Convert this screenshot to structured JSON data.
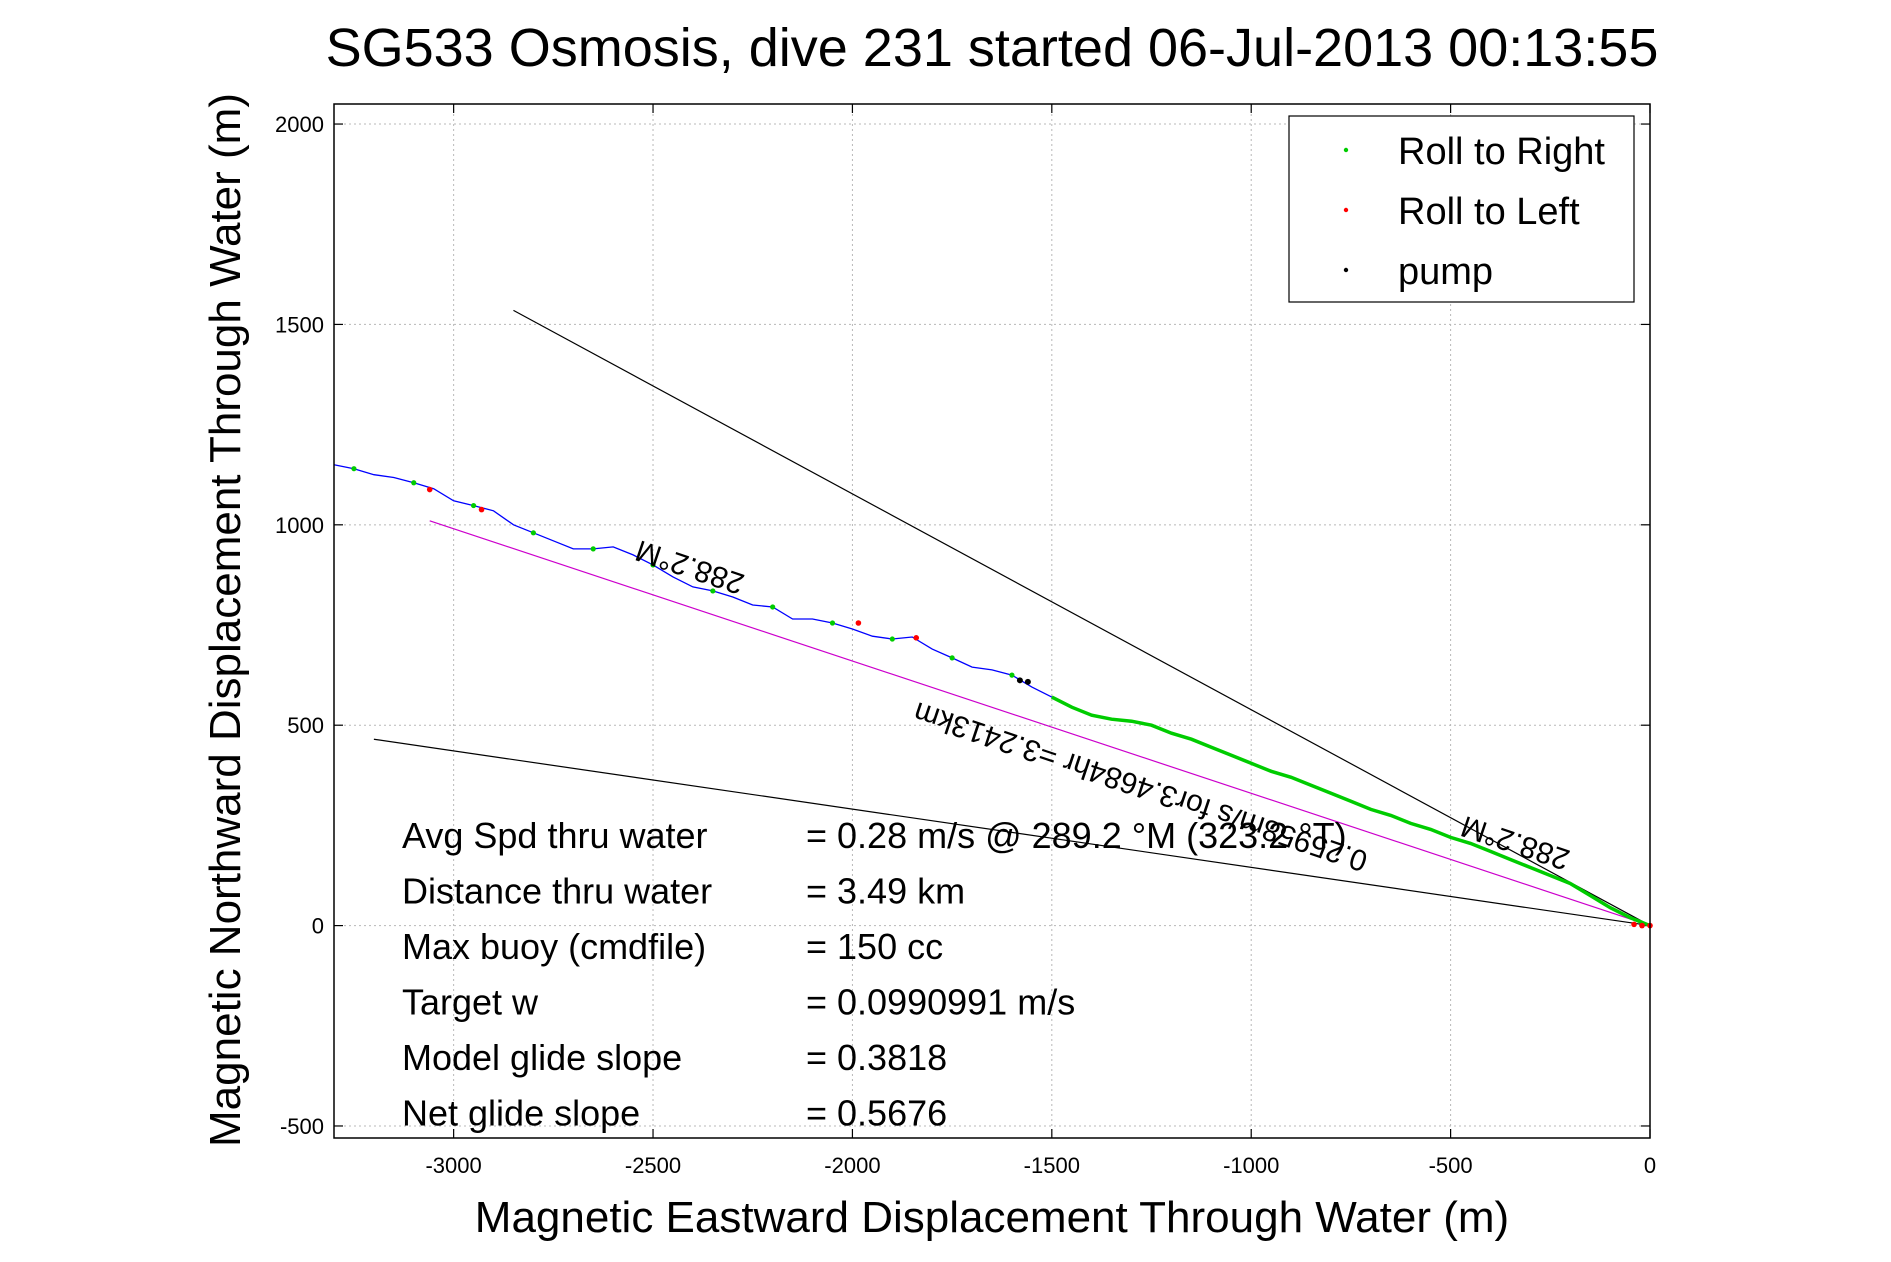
{
  "chart_data": {
    "type": "line",
    "title": "SG533 Osmosis, dive 231 started 06-Jul-2013 00:13:55",
    "xlabel": "Magnetic Eastward Displacement Through Water (m)",
    "ylabel": "Magnetic Northward Displacement Through Water (m)",
    "xlim": [
      -3300,
      0
    ],
    "ylim": [
      -530,
      2050
    ],
    "xticks": [
      -3000,
      -2500,
      -2000,
      -1500,
      -1000,
      -500,
      0
    ],
    "yticks": [
      -500,
      0,
      500,
      1000,
      1500,
      2000
    ],
    "grid": true,
    "legend_position": "top-right",
    "legend": [
      {
        "name": "Roll to Right",
        "color": "#00cc00"
      },
      {
        "name": "Roll to Left",
        "color": "#ff0000"
      },
      {
        "name": "pump",
        "color": "#000000"
      }
    ],
    "track": {
      "color": "#0000ff",
      "x": [
        -3300,
        -3250,
        -3200,
        -3150,
        -3100,
        -3050,
        -3000,
        -2950,
        -2900,
        -2850,
        -2800,
        -2750,
        -2700,
        -2650,
        -2600,
        -2550,
        -2500,
        -2450,
        -2400,
        -2350,
        -2300,
        -2250,
        -2200,
        -2150,
        -2100,
        -2050,
        -2000,
        -1950,
        -1900,
        -1850,
        -1800,
        -1750,
        -1700,
        -1650,
        -1600,
        -1550,
        -1500,
        -1450,
        -1400,
        -1350,
        -1300,
        -1250,
        -1200,
        -1150,
        -1100,
        -1050,
        -1000,
        -950,
        -900,
        -850,
        -800,
        -750,
        -700,
        -650,
        -600,
        -550,
        -500,
        -450,
        -400,
        -350,
        -300,
        -250,
        -200,
        -150,
        -100,
        -50,
        0
      ],
      "y": [
        1150,
        1140,
        1125,
        1118,
        1105,
        1090,
        1060,
        1048,
        1035,
        1000,
        980,
        960,
        940,
        940,
        945,
        925,
        900,
        870,
        845,
        835,
        820,
        800,
        795,
        765,
        765,
        755,
        740,
        722,
        715,
        720,
        690,
        668,
        645,
        638,
        625,
        595,
        570,
        545,
        525,
        515,
        510,
        500,
        480,
        465,
        445,
        425,
        405,
        385,
        370,
        350,
        330,
        310,
        290,
        275,
        255,
        240,
        220,
        205,
        185,
        165,
        145,
        125,
        105,
        75,
        45,
        20,
        0
      ]
    },
    "roll_right_segment": {
      "x_from": -1530,
      "x_to": 0
    },
    "roll_left_points": {
      "x": [
        -3060,
        -2930,
        -1985,
        -1840,
        -40,
        -20,
        0
      ],
      "y": [
        1088,
        1038,
        755,
        718,
        3,
        0,
        0
      ]
    },
    "pump_points": {
      "x": [
        -1580,
        -1560
      ],
      "y": [
        612,
        608
      ]
    },
    "lines": [
      {
        "name": "heading",
        "color": "#cc00cc",
        "x": [
          -3060,
          0
        ],
        "y": [
          1010,
          0
        ]
      },
      {
        "name": "bound-upper",
        "color": "#000000",
        "x": [
          -2850,
          0
        ],
        "y": [
          1535,
          0
        ]
      },
      {
        "name": "bound-lower",
        "color": "#000000",
        "x": [
          -3200,
          0
        ],
        "y": [
          465,
          0
        ]
      }
    ],
    "annotations": [
      {
        "text": "288.2°M",
        "x": -2400,
        "y": 918,
        "angle": 198.5
      },
      {
        "text": "288.2°M",
        "x": -330,
        "y": 230,
        "angle": 198.5
      },
      {
        "text": "0.25958m/s for3.4684hr =3.2413km",
        "x": -1270,
        "y": 370,
        "angle": 198.5
      }
    ],
    "stats": [
      {
        "label": "Avg Spd thru water",
        "value": "=  0.28 m/s @ 289.2 °M (323.2 °T)"
      },
      {
        "label": "Distance thru water",
        "value": "=  3.49 km"
      },
      {
        "label": "Max buoy (cmdfile)",
        "value": "= 150 cc"
      },
      {
        "label": "Target w",
        "value": "= 0.0990991 m/s"
      },
      {
        "label": "Model glide slope",
        "value": "= 0.3818"
      },
      {
        "label": "Net glide slope",
        "value": "= 0.5676"
      }
    ]
  }
}
